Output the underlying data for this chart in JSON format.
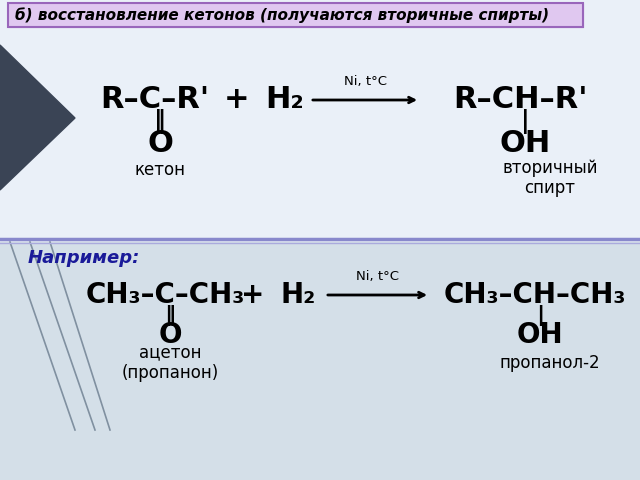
{
  "bg_top_color": "#e8eef8",
  "bg_bot_color": "#d0dcea",
  "title_box_color": "#e0c8f0",
  "title_border_color": "#9966bb",
  "title_text": "б) восстановление кетонов (получаются вторичные спирты)",
  "title_fontsize": 11,
  "divider_color1": "#8888cc",
  "divider_color2": "#aaaadd",
  "dark_shape_color": "#3a4455",
  "top_section": {
    "reactant": "R–C–R'",
    "double_bond": "‖",
    "oxygen": "O",
    "plus": "+",
    "h2": "H₂",
    "arrow_label": "Ni, t°C",
    "product": "R–CH–R'",
    "single_bond": "|",
    "oh": "OH",
    "label_left": "кетон",
    "label_right": "вторичный\nспирт"
  },
  "bottom_section": {
    "napr": "Например:",
    "reactant": "CH₃–C–CH₃",
    "double_bond": "‖",
    "oxygen": "O",
    "plus": "+",
    "h2": "H₂",
    "arrow_label": "Ni, t°C",
    "product": "CH₃–CH–CH₃",
    "single_bond": "|",
    "oh": "OH",
    "label_left": "ацетон\n(пропанон)",
    "label_right": "пропанол-2"
  },
  "font_chem": 22,
  "font_chem2": 20,
  "font_label": 12,
  "font_napr": 13
}
